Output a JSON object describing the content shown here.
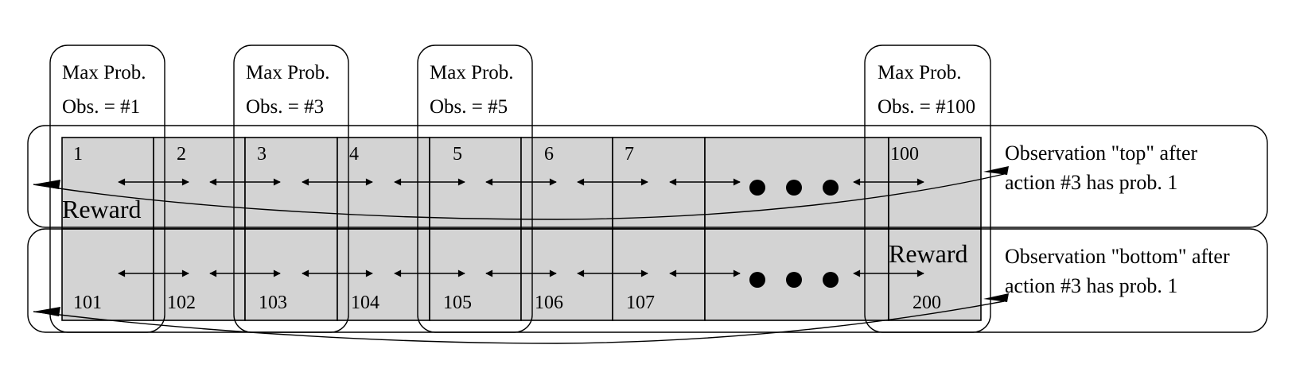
{
  "observation_groups": [
    {
      "line1": "Max Prob.",
      "line2": "Obs. = #1"
    },
    {
      "line1": "Max Prob.",
      "line2": "Obs. = #3"
    },
    {
      "line1": "Max Prob.",
      "line2": "Obs. = #5"
    },
    {
      "line1": "Max Prob.",
      "line2": "Obs. = #100"
    }
  ],
  "top_row": {
    "state_labels": [
      "1",
      "2",
      "3",
      "4",
      "5",
      "6",
      "7",
      "100"
    ],
    "reward_label": "Reward",
    "observation_note": [
      "Observation \"top\" after",
      "action #3 has prob. 1"
    ]
  },
  "bottom_row": {
    "state_labels": [
      "101",
      "102",
      "103",
      "104",
      "105",
      "106",
      "107",
      "200"
    ],
    "reward_label": "Reward",
    "observation_note": [
      "Observation \"bottom\" after",
      "action #3 has prob. 1"
    ]
  },
  "ellipsis": "•••"
}
